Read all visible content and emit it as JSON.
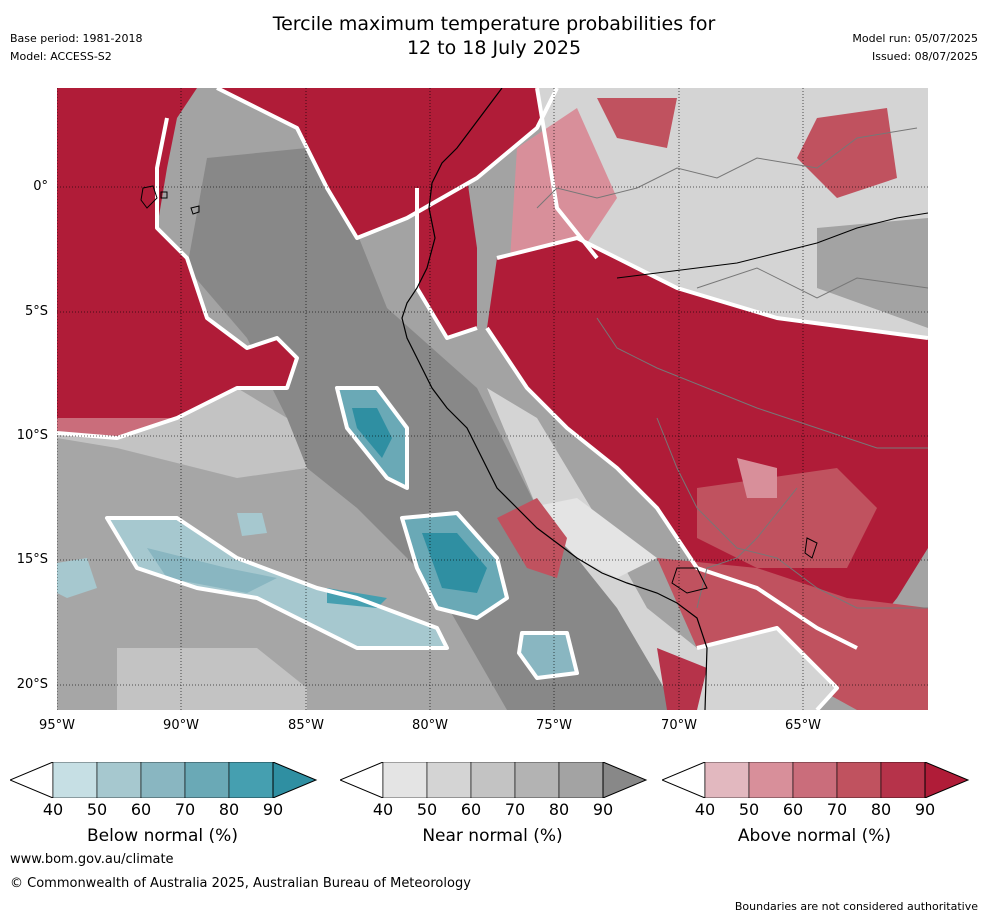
{
  "header": {
    "title_line1": "Tercile maximum temperature probabilities for",
    "title_line2": "12 to 18 July 2025",
    "base_period": "Base period: 1981-2018",
    "model": "Model: ACCESS-S2",
    "model_run": "Model run: 05/07/2025",
    "issued": "Issued: 08/07/2025"
  },
  "map": {
    "lat_labels": [
      "0°",
      "5°S",
      "10°S",
      "15°S",
      "20°S"
    ],
    "lon_labels": [
      "95°W",
      "90°W",
      "85°W",
      "80°W",
      "75°W",
      "70°W",
      "65°W"
    ],
    "lon_range": [
      -95,
      -60
    ],
    "lat_range": [
      4,
      -21
    ],
    "colors": {
      "below": [
        "#c6dfe4",
        "#a6c8cf",
        "#89b6c1",
        "#6aa9b6",
        "#459fb0",
        "#2f8fa2"
      ],
      "near": [
        "#e4e4e4",
        "#d4d4d4",
        "#c3c3c3",
        "#b3b3b3",
        "#a3a3a3",
        "#888888"
      ],
      "above": [
        "#e2b8bf",
        "#d88f9a",
        "#ca6d7b",
        "#c0525f",
        "#b6334a",
        "#b01c38"
      ]
    }
  },
  "colorbars": [
    {
      "name": "below",
      "title": "Below normal (%)",
      "ticks": [
        "40",
        "50",
        "60",
        "70",
        "80",
        "90"
      ]
    },
    {
      "name": "near",
      "title": "Near normal (%)",
      "ticks": [
        "40",
        "50",
        "60",
        "70",
        "80",
        "90"
      ]
    },
    {
      "name": "above",
      "title": "Above normal (%)",
      "ticks": [
        "40",
        "50",
        "60",
        "70",
        "80",
        "90"
      ]
    }
  ],
  "footer": {
    "website": "www.bom.gov.au/climate",
    "copyright": "© Commonwealth of Australia 2025, Australian Bureau of Meteorology",
    "disclaimer": "Boundaries are not considered authoritative"
  }
}
